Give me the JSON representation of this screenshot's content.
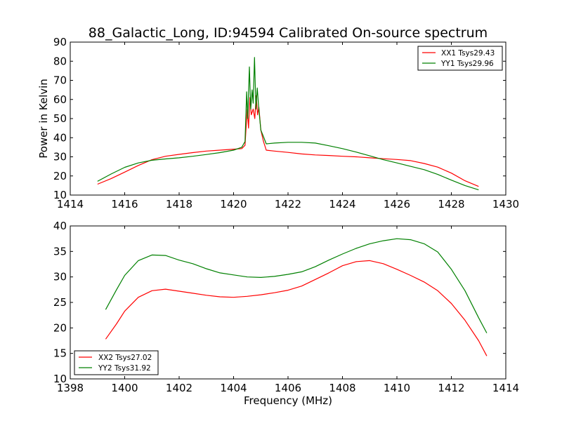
{
  "chart_data": [
    {
      "type": "line",
      "title": "88_Galactic_Long, ID:94594 Calibrated On-source spectrum",
      "xlabel": "",
      "ylabel": "Power in Kelvin",
      "xlim": [
        1414,
        1430
      ],
      "ylim": [
        10,
        90
      ],
      "xticks": [
        "1414",
        "1416",
        "1418",
        "1420",
        "1422",
        "1424",
        "1426",
        "1428",
        "1430"
      ],
      "yticks": [
        "10",
        "20",
        "30",
        "40",
        "50",
        "60",
        "70",
        "80",
        "90"
      ],
      "grid": false,
      "legend_position": "top-right",
      "series": [
        {
          "name": "XX1 Tsys29.43",
          "color": "#ff0000",
          "points": [
            [
              1415.0,
              15.7
            ],
            [
              1415.5,
              18.6
            ],
            [
              1416.0,
              22.0
            ],
            [
              1416.5,
              25.5
            ],
            [
              1417.0,
              28.5
            ],
            [
              1417.5,
              30.3
            ],
            [
              1418.0,
              31.3
            ],
            [
              1418.5,
              32.2
            ],
            [
              1419.0,
              33.0
            ],
            [
              1419.5,
              33.5
            ],
            [
              1420.0,
              34.0
            ],
            [
              1420.3,
              34.3
            ],
            [
              1420.42,
              36.0
            ],
            [
              1420.5,
              55.0
            ],
            [
              1420.55,
              45.0
            ],
            [
              1420.6,
              61.0
            ],
            [
              1420.65,
              52.0
            ],
            [
              1420.72,
              55.0
            ],
            [
              1420.78,
              50.0
            ],
            [
              1420.83,
              62.0
            ],
            [
              1420.88,
              52.0
            ],
            [
              1420.93,
              56.0
            ],
            [
              1421.0,
              44.0
            ],
            [
              1421.1,
              38.0
            ],
            [
              1421.2,
              33.5
            ],
            [
              1421.5,
              33.0
            ],
            [
              1422.0,
              32.3
            ],
            [
              1422.5,
              31.5
            ],
            [
              1423.0,
              31.0
            ],
            [
              1423.5,
              30.7
            ],
            [
              1424.0,
              30.3
            ],
            [
              1424.5,
              30.0
            ],
            [
              1425.0,
              29.5
            ],
            [
              1425.5,
              29.0
            ],
            [
              1426.0,
              28.6
            ],
            [
              1426.5,
              28.0
            ],
            [
              1427.0,
              26.5
            ],
            [
              1427.5,
              24.6
            ],
            [
              1428.0,
              21.5
            ],
            [
              1428.5,
              17.5
            ],
            [
              1429.0,
              14.5
            ]
          ]
        },
        {
          "name": "YY1 Tsys29.96",
          "color": "#008000",
          "points": [
            [
              1415.0,
              17.2
            ],
            [
              1415.5,
              21.0
            ],
            [
              1416.0,
              24.5
            ],
            [
              1416.5,
              26.8
            ],
            [
              1417.0,
              28.2
            ],
            [
              1417.5,
              28.9
            ],
            [
              1418.0,
              29.5
            ],
            [
              1418.5,
              30.3
            ],
            [
              1419.0,
              31.2
            ],
            [
              1419.5,
              32.2
            ],
            [
              1420.0,
              33.5
            ],
            [
              1420.3,
              35.0
            ],
            [
              1420.42,
              38.0
            ],
            [
              1420.48,
              64.0
            ],
            [
              1420.52,
              50.0
            ],
            [
              1420.58,
              77.0
            ],
            [
              1420.63,
              55.0
            ],
            [
              1420.68,
              65.0
            ],
            [
              1420.72,
              58.0
            ],
            [
              1420.77,
              82.0
            ],
            [
              1420.82,
              55.0
            ],
            [
              1420.87,
              66.0
            ],
            [
              1420.92,
              56.0
            ],
            [
              1421.0,
              44.0
            ],
            [
              1421.1,
              40.5
            ],
            [
              1421.2,
              36.8
            ],
            [
              1421.5,
              37.2
            ],
            [
              1422.0,
              37.6
            ],
            [
              1422.5,
              37.6
            ],
            [
              1423.0,
              37.2
            ],
            [
              1423.5,
              35.8
            ],
            [
              1424.0,
              34.3
            ],
            [
              1424.5,
              32.5
            ],
            [
              1425.0,
              30.5
            ],
            [
              1425.5,
              28.5
            ],
            [
              1426.0,
              26.8
            ],
            [
              1426.5,
              25.0
            ],
            [
              1427.0,
              23.3
            ],
            [
              1427.5,
              20.8
            ],
            [
              1428.0,
              17.8
            ],
            [
              1428.5,
              15.0
            ],
            [
              1429.0,
              12.7
            ]
          ]
        }
      ]
    },
    {
      "type": "line",
      "title": "",
      "xlabel": "Frequency (MHz)",
      "ylabel": "",
      "xlim": [
        1398,
        1414
      ],
      "ylim": [
        10,
        40
      ],
      "xticks": [
        "1398",
        "1400",
        "1402",
        "1404",
        "1406",
        "1408",
        "1410",
        "1412",
        "1414"
      ],
      "yticks": [
        "10",
        "15",
        "20",
        "25",
        "30",
        "35",
        "40"
      ],
      "grid": false,
      "legend_position": "bottom-left",
      "series": [
        {
          "name": "XX2 Tsys27.02",
          "color": "#ff0000",
          "points": [
            [
              1399.3,
              17.8
            ],
            [
              1399.7,
              20.8
            ],
            [
              1400.0,
              23.3
            ],
            [
              1400.5,
              26.0
            ],
            [
              1401.0,
              27.3
            ],
            [
              1401.5,
              27.6
            ],
            [
              1402.0,
              27.2
            ],
            [
              1402.5,
              26.8
            ],
            [
              1403.0,
              26.4
            ],
            [
              1403.5,
              26.1
            ],
            [
              1404.0,
              26.0
            ],
            [
              1404.5,
              26.2
            ],
            [
              1405.0,
              26.5
            ],
            [
              1405.5,
              26.9
            ],
            [
              1406.0,
              27.4
            ],
            [
              1406.5,
              28.2
            ],
            [
              1407.0,
              29.5
            ],
            [
              1407.5,
              30.8
            ],
            [
              1408.0,
              32.2
            ],
            [
              1408.5,
              33.0
            ],
            [
              1409.0,
              33.2
            ],
            [
              1409.5,
              32.6
            ],
            [
              1410.0,
              31.5
            ],
            [
              1410.5,
              30.3
            ],
            [
              1411.0,
              29.0
            ],
            [
              1411.5,
              27.3
            ],
            [
              1412.0,
              24.8
            ],
            [
              1412.5,
              21.5
            ],
            [
              1413.0,
              17.5
            ],
            [
              1413.3,
              14.5
            ]
          ]
        },
        {
          "name": "YY2 Tsys31.92",
          "color": "#008000",
          "points": [
            [
              1399.3,
              23.6
            ],
            [
              1399.7,
              27.5
            ],
            [
              1400.0,
              30.3
            ],
            [
              1400.5,
              33.2
            ],
            [
              1401.0,
              34.3
            ],
            [
              1401.5,
              34.2
            ],
            [
              1402.0,
              33.3
            ],
            [
              1402.5,
              32.6
            ],
            [
              1403.0,
              31.6
            ],
            [
              1403.5,
              30.8
            ],
            [
              1404.0,
              30.4
            ],
            [
              1404.5,
              30.0
            ],
            [
              1405.0,
              29.9
            ],
            [
              1405.5,
              30.1
            ],
            [
              1406.0,
              30.5
            ],
            [
              1406.5,
              31.0
            ],
            [
              1407.0,
              32.0
            ],
            [
              1407.5,
              33.3
            ],
            [
              1408.0,
              34.5
            ],
            [
              1408.5,
              35.6
            ],
            [
              1409.0,
              36.5
            ],
            [
              1409.5,
              37.1
            ],
            [
              1410.0,
              37.5
            ],
            [
              1410.5,
              37.3
            ],
            [
              1411.0,
              36.5
            ],
            [
              1411.5,
              34.9
            ],
            [
              1412.0,
              31.5
            ],
            [
              1412.5,
              27.3
            ],
            [
              1413.0,
              22.0
            ],
            [
              1413.3,
              19.0
            ]
          ]
        }
      ]
    }
  ]
}
